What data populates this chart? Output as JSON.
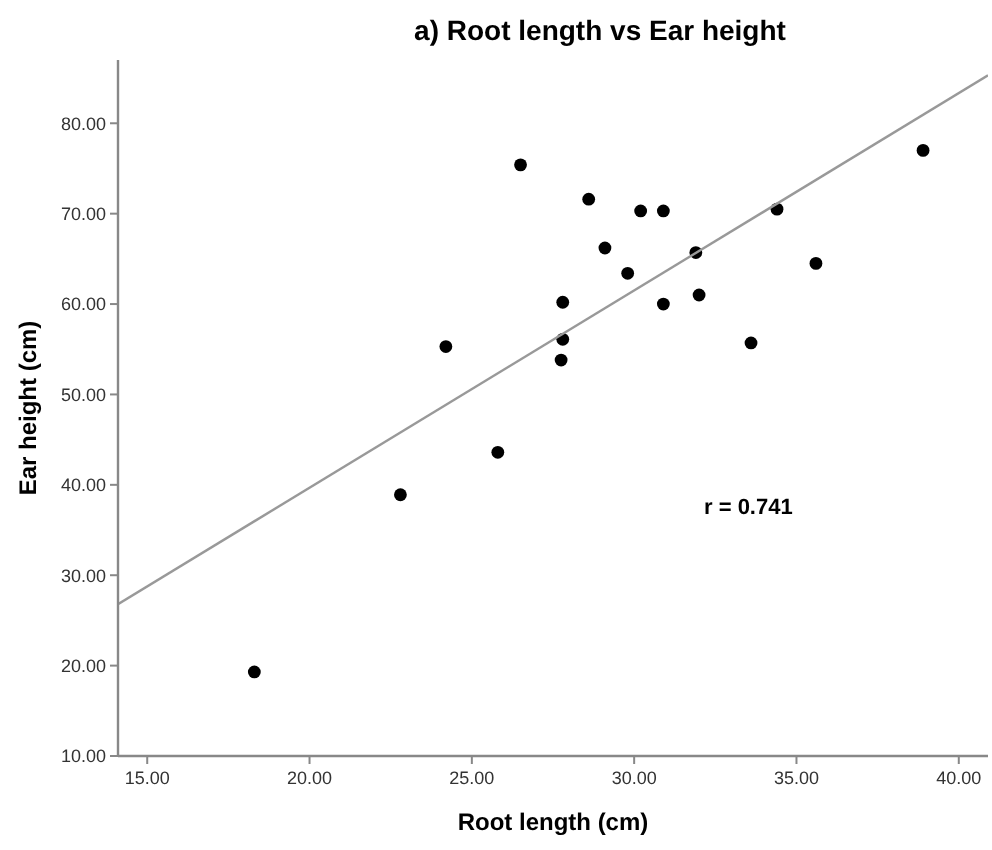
{
  "chart_data": {
    "type": "scatter",
    "title": "a) Root length vs Ear height",
    "xlabel": "Root length (cm)",
    "ylabel": "Ear height (cm)",
    "annotations": [
      "r = 0.741"
    ],
    "xlim": [
      14.1,
      40.9
    ],
    "ylim": [
      10,
      87
    ],
    "xticks": [
      {
        "value": 15,
        "label": "15.00"
      },
      {
        "value": 20,
        "label": "20.00"
      },
      {
        "value": 25,
        "label": "25.00"
      },
      {
        "value": 30,
        "label": "30.00"
      },
      {
        "value": 35,
        "label": "35.00"
      },
      {
        "value": 40,
        "label": "40.00"
      }
    ],
    "yticks": [
      {
        "value": 10,
        "label": "10.00"
      },
      {
        "value": 20,
        "label": "20.00"
      },
      {
        "value": 30,
        "label": "30.00"
      },
      {
        "value": 40,
        "label": "40.00"
      },
      {
        "value": 50,
        "label": "50.00"
      },
      {
        "value": 60,
        "label": "60.00"
      },
      {
        "value": 70,
        "label": "70.00"
      },
      {
        "value": 80,
        "label": "80.00"
      }
    ],
    "grid": false,
    "marker": "circle",
    "series": [
      {
        "color": "#000000",
        "x": [
          18.3,
          22.8,
          24.2,
          25.8,
          26.5,
          27.75,
          27.8,
          27.8,
          28.6,
          29.1,
          29.8,
          30.2,
          30.9,
          30.9,
          31.9,
          32.0,
          33.6,
          34.4,
          35.6,
          38.9
        ],
        "values": [
          19.3,
          38.9,
          55.3,
          43.6,
          75.4,
          53.8,
          56.1,
          60.2,
          71.6,
          66.2,
          63.4,
          70.3,
          70.3,
          60.0,
          65.7,
          61.0,
          55.7,
          70.5,
          64.5,
          77.0
        ]
      },
      {
        "type": "line",
        "color": "#999999",
        "line_style": "solid",
        "marker": "none",
        "x": [
          14.1,
          40.9
        ],
        "values": [
          26.8,
          85.3
        ]
      }
    ]
  }
}
